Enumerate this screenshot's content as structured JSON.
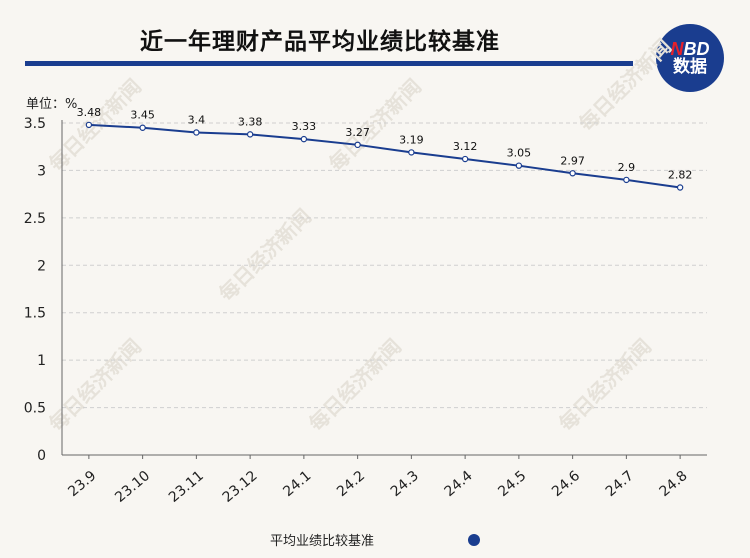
{
  "header": {
    "title": "近一年理财产品平均业绩比较基准",
    "logo_top": "NBD",
    "logo_top_accent": "N",
    "logo_bottom": "数据"
  },
  "unit_label": "单位：%",
  "watermark": "每日经济新闻",
  "colors": {
    "line": "#1a3d8f",
    "accent": "#1a3d8f",
    "logo_accent": "#e8202a",
    "grid": "#cfcfcf"
  },
  "chart_data": {
    "type": "line",
    "title": "近一年理财产品平均业绩比较基准",
    "categories": [
      "23.9",
      "23.10",
      "23.11",
      "23.12",
      "24.1",
      "24.2",
      "24.3",
      "24.4",
      "24.5",
      "24.6",
      "24.7",
      "24.8"
    ],
    "series": [
      {
        "name": "平均业绩比较基准",
        "values": [
          3.48,
          3.45,
          3.4,
          3.38,
          3.33,
          3.27,
          3.19,
          3.12,
          3.05,
          2.97,
          2.9,
          2.82
        ]
      }
    ],
    "value_labels": [
      "3.48",
      "3.45",
      "3.4",
      "3.38",
      "3.33",
      "3.27",
      "3.19",
      "3.12",
      "3.05",
      "2.97",
      "2.9",
      "2.82"
    ],
    "yticks": [
      "0",
      "0.5",
      "1",
      "1.5",
      "2",
      "2.5",
      "3",
      "3.5"
    ],
    "ylim": [
      0,
      3.5
    ],
    "grid": true,
    "legend": "bottom-center",
    "xlabel": "",
    "ylabel": "单位：%"
  }
}
